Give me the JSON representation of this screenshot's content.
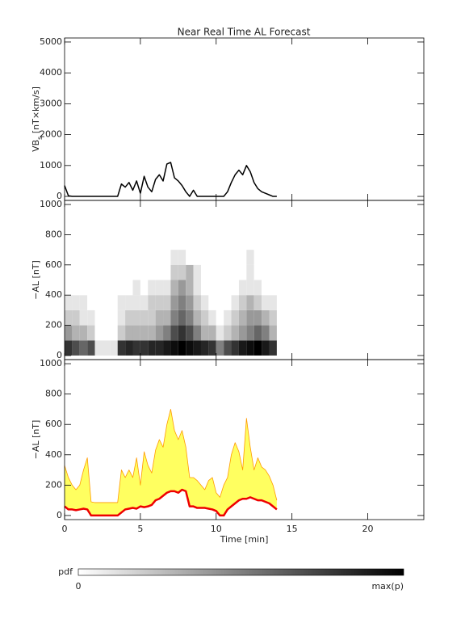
{
  "chart_data": [
    {
      "type": "line",
      "title": "Near Real Time AL Forecast",
      "y_label": [
        "VB",
        "s",
        " [nT×km/s]"
      ],
      "x": [
        0,
        0.25,
        0.5,
        0.75,
        1,
        1.25,
        1.5,
        1.75,
        2,
        2.25,
        2.5,
        2.75,
        3,
        3.25,
        3.5,
        3.75,
        4,
        4.25,
        4.5,
        4.75,
        5,
        5.25,
        5.5,
        5.75,
        6,
        6.25,
        6.5,
        6.75,
        7,
        7.25,
        7.5,
        7.75,
        8,
        8.25,
        8.5,
        8.75,
        9,
        9.25,
        9.5,
        9.75,
        10,
        10.25,
        10.5,
        10.75,
        11,
        11.25,
        11.5,
        11.75,
        12,
        12.25,
        12.5,
        12.75,
        13,
        13.25,
        13.5,
        13.75,
        14
      ],
      "values": [
        350,
        20,
        0,
        0,
        0,
        0,
        0,
        0,
        0,
        0,
        0,
        0,
        0,
        0,
        0,
        400,
        300,
        450,
        200,
        500,
        100,
        650,
        300,
        150,
        550,
        700,
        500,
        1050,
        1100,
        600,
        500,
        350,
        150,
        0,
        200,
        0,
        0,
        0,
        0,
        0,
        0,
        0,
        0,
        150,
        450,
        700,
        850,
        700,
        1000,
        800,
        450,
        250,
        150,
        100,
        50,
        0,
        0
      ],
      "color": "#000000",
      "xlim": [
        0,
        23.7
      ],
      "xticks": [
        0,
        5,
        10,
        15,
        20
      ],
      "ylim": [
        -130,
        5130
      ],
      "yticks": [
        0,
        1000,
        2000,
        3000,
        4000,
        5000
      ]
    },
    {
      "type": "heatmap",
      "y_label": "−AL [nT]",
      "xedges": [
        0,
        0.5,
        1,
        1.5,
        2,
        2.5,
        3,
        3.5,
        4,
        4.5,
        5,
        5.5,
        6,
        6.5,
        7,
        7.5,
        8,
        8.5,
        9,
        9.5,
        10,
        10.5,
        11,
        11.5,
        12,
        12.5,
        13,
        13.5,
        14
      ],
      "yedges": [
        0,
        100,
        200,
        300,
        400,
        500,
        600,
        700
      ],
      "z": [
        [
          0.8,
          0.7,
          0.6,
          0.7,
          0.1,
          0.1,
          0.1,
          0.8,
          0.85,
          0.8,
          0.8,
          0.85,
          0.85,
          0.9,
          0.95,
          1,
          0.95,
          0.9,
          0.85,
          0.8,
          0.5,
          0.7,
          0.8,
          0.9,
          0.95,
          1,
          0.9,
          0.8
        ],
        [
          0.4,
          0.3,
          0.3,
          0.2,
          0,
          0,
          0,
          0.2,
          0.3,
          0.3,
          0.3,
          0.3,
          0.4,
          0.5,
          0.7,
          0.8,
          0.7,
          0.5,
          0.3,
          0.3,
          0.1,
          0.2,
          0.3,
          0.4,
          0.5,
          0.6,
          0.5,
          0.3
        ],
        [
          0.2,
          0.2,
          0.1,
          0.1,
          0,
          0,
          0,
          0.1,
          0.2,
          0.2,
          0.2,
          0.2,
          0.3,
          0.3,
          0.5,
          0.6,
          0.5,
          0.3,
          0.2,
          0.1,
          0,
          0.1,
          0.2,
          0.3,
          0.4,
          0.4,
          0.3,
          0.2
        ],
        [
          0.1,
          0.1,
          0.1,
          0,
          0,
          0,
          0,
          0.1,
          0.1,
          0.1,
          0.1,
          0.2,
          0.2,
          0.2,
          0.4,
          0.5,
          0.4,
          0.2,
          0.1,
          0,
          0,
          0,
          0.1,
          0.2,
          0.3,
          0.2,
          0.1,
          0.1
        ],
        [
          0,
          0,
          0,
          0,
          0,
          0,
          0,
          0,
          0,
          0.1,
          0,
          0.1,
          0.1,
          0.1,
          0.3,
          0.4,
          0.3,
          0.1,
          0,
          0,
          0,
          0,
          0,
          0.1,
          0.1,
          0.1,
          0,
          0
        ],
        [
          0,
          0,
          0,
          0,
          0,
          0,
          0,
          0,
          0,
          0,
          0,
          0,
          0,
          0,
          0.2,
          0.2,
          0.3,
          0.1,
          0,
          0,
          0,
          0,
          0,
          0,
          0.1,
          0,
          0,
          0
        ],
        [
          0,
          0,
          0,
          0,
          0,
          0,
          0,
          0,
          0,
          0,
          0,
          0,
          0,
          0,
          0.1,
          0.1,
          0,
          0,
          0,
          0,
          0,
          0,
          0,
          0,
          0.1,
          0,
          0,
          0
        ]
      ],
      "colorbar": {
        "label": "pdf",
        "min_label": "0",
        "max_label": "max(p)"
      },
      "xlim": [
        0,
        23.7
      ],
      "xticks": [
        0,
        5,
        10,
        15,
        20
      ],
      "ylim": [
        -27,
        1027
      ],
      "yticks": [
        0,
        200,
        400,
        600,
        800,
        1000
      ]
    },
    {
      "type": "line",
      "y_label": "−AL [nT]",
      "x_label": "Time [min]",
      "x": [
        0,
        0.25,
        0.5,
        0.75,
        1,
        1.25,
        1.5,
        1.75,
        2,
        2.25,
        2.5,
        2.75,
        3,
        3.25,
        3.5,
        3.75,
        4,
        4.25,
        4.5,
        4.75,
        5,
        5.25,
        5.5,
        5.75,
        6,
        6.25,
        6.5,
        6.75,
        7,
        7.25,
        7.5,
        7.75,
        8,
        8.25,
        8.5,
        8.75,
        9,
        9.25,
        9.5,
        9.75,
        10,
        10.25,
        10.5,
        10.75,
        11,
        11.25,
        11.5,
        11.75,
        12,
        12.25,
        12.5,
        12.75,
        13,
        13.25,
        13.5,
        13.75,
        14
      ],
      "fill_color": "#ffff60",
      "series": [
        {
          "color": "#ff9a00",
          "values": [
            330,
            250,
            200,
            170,
            200,
            300,
            380,
            90,
            85,
            85,
            85,
            85,
            85,
            85,
            85,
            300,
            250,
            300,
            250,
            380,
            200,
            420,
            330,
            280,
            430,
            500,
            450,
            600,
            700,
            560,
            500,
            560,
            450,
            250,
            250,
            230,
            200,
            170,
            230,
            250,
            150,
            120,
            200,
            250,
            400,
            480,
            420,
            300,
            640,
            450,
            300,
            380,
            320,
            300,
            260,
            200,
            100
          ]
        },
        {
          "color": "#ee0000",
          "values": [
            60,
            40,
            40,
            35,
            40,
            45,
            40,
            0,
            0,
            0,
            0,
            0,
            0,
            0,
            0,
            20,
            40,
            45,
            50,
            45,
            60,
            55,
            60,
            70,
            100,
            110,
            130,
            150,
            160,
            160,
            150,
            170,
            160,
            60,
            60,
            50,
            50,
            50,
            45,
            40,
            30,
            0,
            0,
            40,
            60,
            80,
            100,
            110,
            110,
            120,
            110,
            100,
            100,
            90,
            80,
            60,
            40
          ]
        }
      ],
      "xlim": [
        0,
        23.7
      ],
      "xticks": [
        0,
        5,
        10,
        15,
        20
      ],
      "ylim": [
        -27,
        1027
      ],
      "yticks": [
        0,
        200,
        400,
        600,
        800,
        1000
      ]
    }
  ]
}
